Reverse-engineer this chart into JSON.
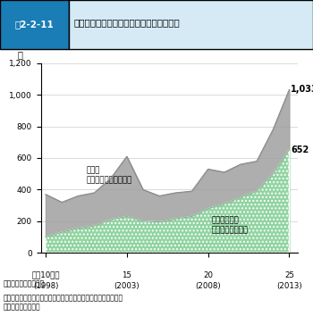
{
  "years": [
    1998,
    1999,
    2000,
    2001,
    2002,
    2003,
    2004,
    2005,
    2006,
    2007,
    2008,
    2009,
    2010,
    2011,
    2012,
    2013
  ],
  "green_series": [
    100,
    130,
    155,
    170,
    210,
    230,
    200,
    195,
    215,
    230,
    280,
    310,
    350,
    390,
    500,
    652
  ],
  "total_series": [
    370,
    320,
    360,
    380,
    470,
    610,
    400,
    360,
    380,
    390,
    530,
    510,
    560,
    580,
    780,
    1033
  ],
  "green_color": "#90d4a0",
  "gray_color": "#a0a0a0",
  "title_box_color": "#1a7db5",
  "title_label": "図2-2-11",
  "title_text": "農業水利施設における突発事故の発生状況",
  "ylabel": "件",
  "ylim": [
    0,
    1200
  ],
  "yticks": [
    0,
    200,
    400,
    600,
    800,
    1000,
    1200
  ],
  "xlim": [
    1998,
    2013
  ],
  "xtick_labels_top": [
    "平成10年度",
    "15",
    "20",
    "25"
  ],
  "xtick_labels_bottom": [
    "(1998)",
    "(2003)",
    "(2008)",
    "(2013)"
  ],
  "xtick_positions": [
    1998,
    2003,
    2008,
    2013
  ],
  "annotation_green": "経年的な劣化\n及び局部的な劣化",
  "annotation_gray": "その他\n（降雨、地盤沈下等）",
  "label_1033": "1,033",
  "label_652": "652",
  "source_text": "資料：農林水産省調べ",
  "note_text": "注：施設の管理者（国、都道府県、市町村、土地改良区等）に対\n　する聆き取り調査",
  "background_color": "#ffffff"
}
